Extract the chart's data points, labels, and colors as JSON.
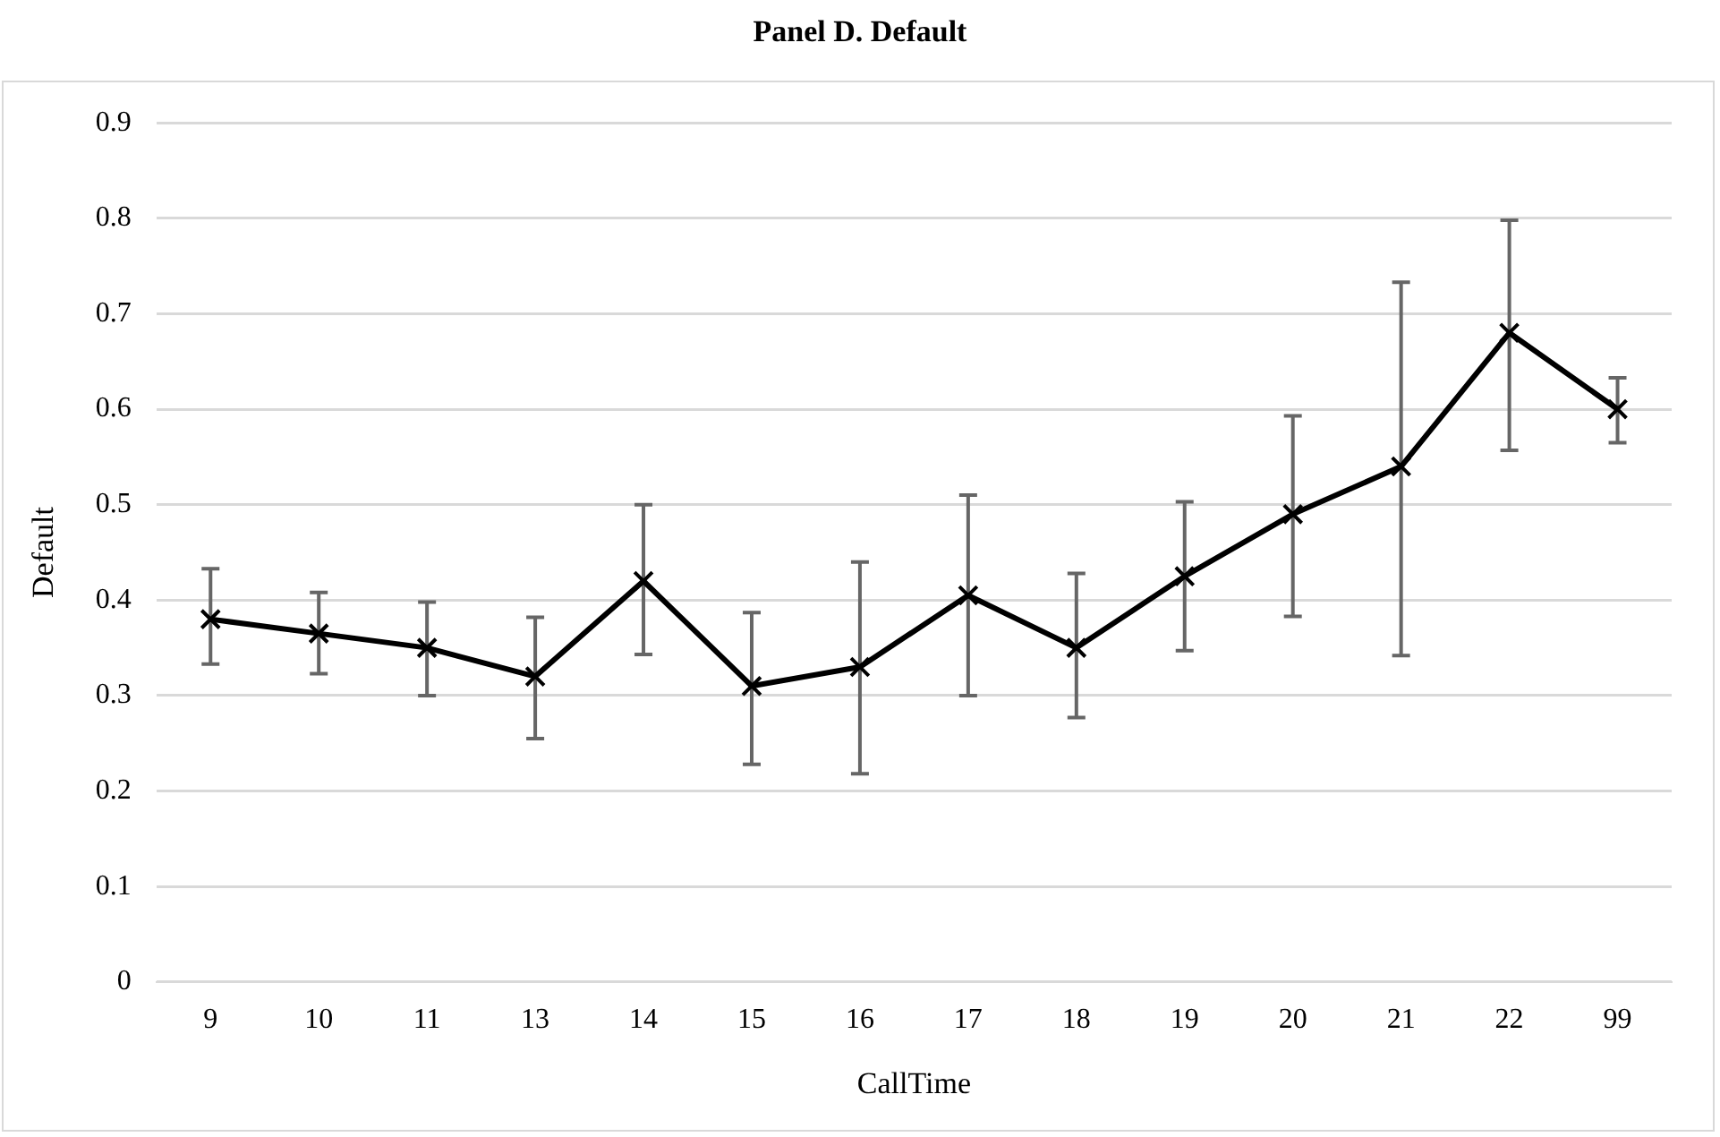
{
  "chart_data": {
    "type": "line",
    "title": "Panel D. Default",
    "xlabel": "CallTime",
    "ylabel": "Default",
    "categories": [
      "9",
      "10",
      "11",
      "13",
      "14",
      "15",
      "16",
      "17",
      "18",
      "19",
      "20",
      "21",
      "22",
      "99"
    ],
    "series": [
      {
        "color": "#000000",
        "values": [
          0.38,
          0.365,
          0.35,
          0.32,
          0.42,
          0.31,
          0.33,
          0.405,
          0.35,
          0.425,
          0.49,
          0.54,
          0.68,
          0.6
        ],
        "errors": [
          [
            0.333,
            0.433
          ],
          [
            0.323,
            0.408
          ],
          [
            0.3,
            0.398
          ],
          [
            0.255,
            0.382
          ],
          [
            0.343,
            0.5
          ],
          [
            0.228,
            0.387
          ],
          [
            0.218,
            0.44
          ],
          [
            0.3,
            0.51
          ],
          [
            0.277,
            0.428
          ],
          [
            0.347,
            0.503
          ],
          [
            0.383,
            0.593
          ],
          [
            0.342,
            0.733
          ],
          [
            0.557,
            0.798
          ],
          [
            0.565,
            0.633
          ]
        ]
      }
    ],
    "ylim": [
      0,
      0.9
    ],
    "yticks": [
      0,
      0.1,
      0.2,
      0.3,
      0.4,
      0.5,
      0.6,
      0.7,
      0.8,
      0.9
    ],
    "grid": "y",
    "legend": false,
    "marker": "cross",
    "line_style": "solid"
  }
}
